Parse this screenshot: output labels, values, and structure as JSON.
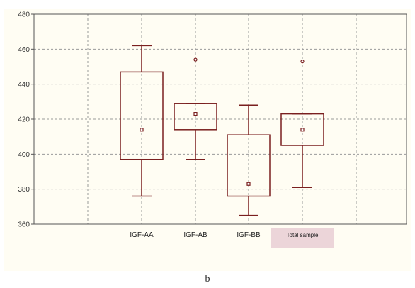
{
  "chart_data": {
    "type": "box",
    "ylim": [
      360,
      480
    ],
    "yticks": [
      360,
      380,
      400,
      420,
      440,
      460,
      480
    ],
    "grid": true,
    "categories": [
      "IGF-AA",
      "IGF-AB",
      "IGF-BB",
      "Total sample"
    ],
    "boxes": [
      {
        "category": "IGF-AA",
        "whisker_low": 376,
        "q1": 397,
        "median": 414,
        "q3": 447,
        "whisker_high": 462,
        "outliers": []
      },
      {
        "category": "IGF-AB",
        "whisker_low": 397,
        "q1": 414,
        "median": 423,
        "q3": 429,
        "whisker_high": 429,
        "outliers": [
          454
        ]
      },
      {
        "category": "IGF-BB",
        "whisker_low": 365,
        "q1": 376,
        "median": 383,
        "q3": 411,
        "whisker_high": 428,
        "outliers": []
      },
      {
        "category": "Total sample",
        "whisker_low": 381,
        "q1": 405,
        "median": 414,
        "q3": 423,
        "whisker_high": 423,
        "outliers": [
          453
        ]
      }
    ],
    "highlighted_category": "Total sample",
    "colors": {
      "box": "#7a1f1f",
      "grid": "#9a9a9a",
      "background": "#fffdf3",
      "highlight": "#ecd5d9"
    }
  },
  "caption": "b"
}
